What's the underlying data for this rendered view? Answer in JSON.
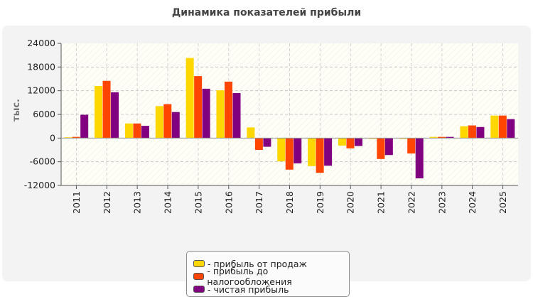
{
  "colors": {
    "series": [
      "#ffd700",
      "#ff4500",
      "#800080"
    ]
  },
  "chart_data": {
    "type": "bar",
    "title": "Динамика показателей прибыли",
    "ylabel": "тыс.",
    "xlabel": "",
    "ylim": [
      -12000,
      24000
    ],
    "yticks": [
      24000,
      18000,
      12000,
      6000,
      0,
      -6000,
      -12000
    ],
    "grid": true,
    "legend_position": "bottom-center",
    "categories": [
      "2011",
      "2012",
      "2013",
      "2014",
      "2015",
      "2016",
      "2017",
      "2018",
      "2019",
      "2020",
      "2021",
      "2022",
      "2023",
      "2024",
      "2025"
    ],
    "series": [
      {
        "name": "прибыль от продаж",
        "values": [
          200,
          13200,
          3700,
          8100,
          20300,
          12100,
          2700,
          -5900,
          -7100,
          -1900,
          -200,
          -200,
          300,
          3000,
          5700
        ]
      },
      {
        "name": "прибыль до налогообложения",
        "values": [
          300,
          14500,
          3700,
          8600,
          15700,
          14300,
          -3000,
          -8000,
          -8800,
          -2600,
          -5300,
          -3900,
          300,
          3200,
          5700
        ]
      },
      {
        "name": "чистая прибыль",
        "values": [
          5900,
          11600,
          3100,
          6600,
          12500,
          11400,
          -2200,
          -6400,
          -7000,
          -2000,
          -4300,
          -10200,
          300,
          2800,
          4800
        ]
      }
    ]
  }
}
